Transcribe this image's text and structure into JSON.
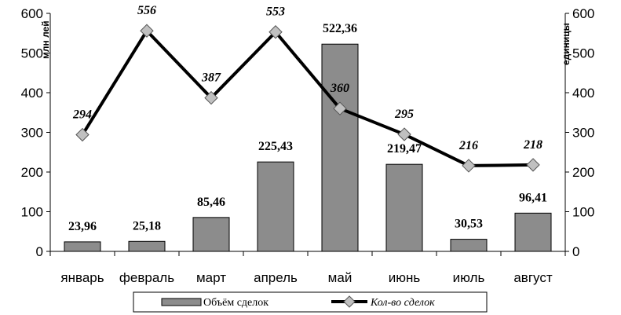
{
  "chart_data": {
    "type": "bar",
    "categories": [
      "январь",
      "февраль",
      "март",
      "апрель",
      "май",
      "июнь",
      "июль",
      "август"
    ],
    "series": [
      {
        "name": "Объём сделок",
        "type": "bar",
        "axis": "left",
        "values": [
          23.96,
          25.18,
          85.46,
          225.43,
          522.36,
          219.47,
          30.53,
          96.41
        ],
        "labels": [
          "23,96",
          "25,18",
          "85,46",
          "225,43",
          "522,36",
          "219,47",
          "30,53",
          "96,41"
        ],
        "color": "#8c8c8c"
      },
      {
        "name": "Кол-во сделок",
        "type": "line",
        "axis": "right",
        "values": [
          294,
          556,
          387,
          553,
          360,
          295,
          216,
          218
        ],
        "labels": [
          "294",
          "556",
          "387",
          "553",
          "360",
          "295",
          "216",
          "218"
        ],
        "color": "#000000",
        "marker_color": "#c0c0c0"
      }
    ],
    "ylabel_left": "млн лей",
    "ylabel_right": "единицы",
    "ylim": [
      0,
      600
    ],
    "yticks": [
      0,
      100,
      200,
      300,
      400,
      500,
      600
    ],
    "grid": false,
    "legend_position": "bottom"
  }
}
